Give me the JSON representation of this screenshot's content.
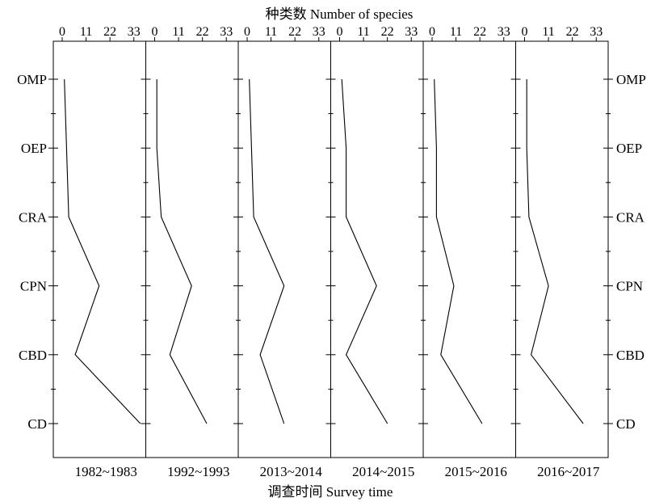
{
  "chart_data": {
    "type": "line",
    "title": "种类数 Number of species",
    "xlabel": "调查时间 Survey time",
    "x_ticks": [
      0,
      11,
      22,
      33
    ],
    "xlim": [
      0,
      37
    ],
    "categories": [
      "OMP",
      "OEP",
      "CRA",
      "CPN",
      "CBD",
      "CD"
    ],
    "series": [
      {
        "name": "1982~1983",
        "values": [
          1,
          2,
          3,
          17,
          6,
          36
        ]
      },
      {
        "name": "1992~1993",
        "values": [
          1,
          1,
          3,
          17,
          7,
          24
        ]
      },
      {
        "name": "2013~2014",
        "values": [
          1,
          2,
          3,
          17,
          6,
          17
        ]
      },
      {
        "name": "2014~2015",
        "values": [
          1,
          3,
          3,
          17,
          3,
          22
        ]
      },
      {
        "name": "2015~2016",
        "values": [
          1,
          2,
          2,
          10,
          4,
          23
        ]
      },
      {
        "name": "2016~2017",
        "values": [
          1,
          1,
          2,
          11,
          3,
          27
        ]
      }
    ]
  }
}
